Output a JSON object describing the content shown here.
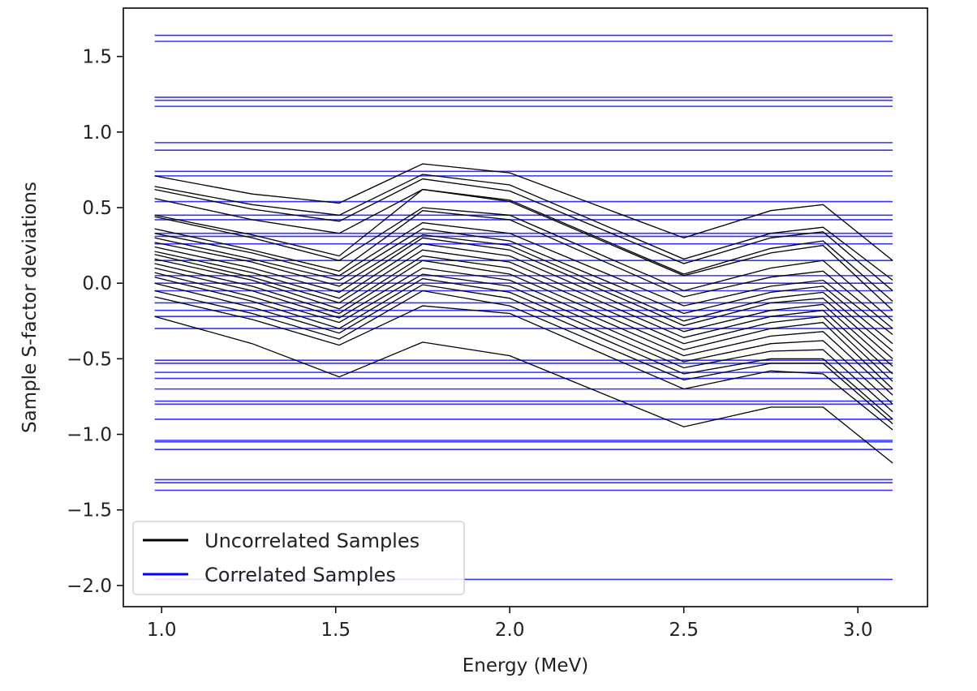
{
  "chart_data": {
    "type": "line",
    "title": "",
    "xlabel": "Energy (MeV)",
    "ylabel": "Sample S-factor deviations",
    "xlim": [
      0.89,
      3.2
    ],
    "ylim": [
      -2.14,
      1.82
    ],
    "xticks": [
      1.0,
      1.5,
      2.0,
      2.5,
      3.0
    ],
    "xtick_labels": [
      "1.0",
      "1.5",
      "2.0",
      "2.5",
      "3.0"
    ],
    "yticks": [
      1.5,
      1.0,
      0.5,
      0.0,
      -0.5,
      -1.0,
      -1.5,
      -2.0
    ],
    "ytick_labels": [
      "1.5",
      "1.0",
      "0.5",
      "0.0",
      "−0.5",
      "−1.0",
      "−1.5",
      "−2.0"
    ],
    "grid": false,
    "legend_position": "lower-left",
    "legend": [
      {
        "label": "Uncorrelated Samples",
        "color": "#000000"
      },
      {
        "label": "Correlated Samples",
        "color": "#0000ff"
      }
    ],
    "energies": [
      0.98,
      1.26,
      1.51,
      1.75,
      2.0,
      2.5,
      2.75,
      2.9,
      3.1
    ],
    "series": [
      {
        "group": "uncorrelated",
        "values": [
          0.71,
          0.59,
          0.53,
          0.79,
          0.73,
          0.3,
          0.48,
          0.52,
          0.15
        ]
      },
      {
        "group": "uncorrelated",
        "values": [
          0.64,
          0.52,
          0.45,
          0.72,
          0.65,
          0.16,
          0.33,
          0.37,
          0.02
        ]
      },
      {
        "group": "uncorrelated",
        "values": [
          0.62,
          0.49,
          0.41,
          0.69,
          0.61,
          0.13,
          0.3,
          0.34,
          -0.05
        ]
      },
      {
        "group": "uncorrelated",
        "values": [
          0.56,
          0.42,
          0.33,
          0.62,
          0.55,
          0.06,
          0.23,
          0.28,
          -0.12
        ]
      },
      {
        "group": "uncorrelated",
        "values": [
          0.45,
          0.32,
          0.18,
          0.62,
          0.54,
          0.05,
          0.2,
          0.25,
          -0.18
        ]
      },
      {
        "group": "uncorrelated",
        "values": [
          0.44,
          0.3,
          0.15,
          0.5,
          0.45,
          -0.05,
          0.1,
          0.15,
          -0.25
        ]
      },
      {
        "group": "uncorrelated",
        "values": [
          0.36,
          0.22,
          0.08,
          0.48,
          0.42,
          -0.09,
          0.04,
          0.08,
          -0.3
        ]
      },
      {
        "group": "uncorrelated",
        "values": [
          0.33,
          0.2,
          0.05,
          0.4,
          0.33,
          -0.15,
          -0.02,
          0.02,
          -0.34
        ]
      },
      {
        "group": "uncorrelated",
        "values": [
          0.3,
          0.16,
          0.02,
          0.36,
          0.28,
          -0.2,
          -0.06,
          -0.02,
          -0.4
        ]
      },
      {
        "group": "uncorrelated",
        "values": [
          0.27,
          0.14,
          -0.02,
          0.32,
          0.25,
          -0.25,
          -0.1,
          -0.06,
          -0.45
        ]
      },
      {
        "group": "uncorrelated",
        "values": [
          0.24,
          0.1,
          -0.06,
          0.3,
          0.22,
          -0.28,
          -0.13,
          -0.1,
          -0.5
        ]
      },
      {
        "group": "uncorrelated",
        "values": [
          0.21,
          0.07,
          -0.1,
          0.26,
          0.18,
          -0.32,
          -0.18,
          -0.14,
          -0.55
        ]
      },
      {
        "group": "uncorrelated",
        "values": [
          0.19,
          0.04,
          -0.13,
          0.22,
          0.14,
          -0.36,
          -0.22,
          -0.18,
          -0.6
        ]
      },
      {
        "group": "uncorrelated",
        "values": [
          0.16,
          0.02,
          -0.17,
          0.18,
          0.1,
          -0.4,
          -0.26,
          -0.22,
          -0.65
        ]
      },
      {
        "group": "uncorrelated",
        "values": [
          0.13,
          -0.02,
          -0.2,
          0.15,
          0.06,
          -0.44,
          -0.3,
          -0.26,
          -0.7
        ]
      },
      {
        "group": "uncorrelated",
        "values": [
          0.1,
          -0.05,
          -0.23,
          0.1,
          0.02,
          -0.48,
          -0.35,
          -0.32,
          -0.74
        ]
      },
      {
        "group": "uncorrelated",
        "values": [
          0.07,
          -0.09,
          -0.26,
          0.06,
          -0.02,
          -0.52,
          -0.4,
          -0.38,
          -0.8
        ]
      },
      {
        "group": "uncorrelated",
        "values": [
          0.04,
          -0.12,
          -0.3,
          0.03,
          -0.06,
          -0.56,
          -0.45,
          -0.44,
          -0.85
        ]
      },
      {
        "group": "uncorrelated",
        "values": [
          0.0,
          -0.16,
          -0.33,
          -0.01,
          -0.1,
          -0.6,
          -0.5,
          -0.5,
          -0.9
        ]
      },
      {
        "group": "uncorrelated",
        "values": [
          -0.05,
          -0.2,
          -0.37,
          -0.05,
          -0.15,
          -0.64,
          -0.53,
          -0.53,
          -0.93
        ]
      },
      {
        "group": "uncorrelated",
        "values": [
          -0.09,
          -0.24,
          -0.41,
          -0.15,
          -0.2,
          -0.7,
          -0.58,
          -0.6,
          -0.97
        ]
      },
      {
        "group": "uncorrelated",
        "values": [
          -0.22,
          -0.4,
          -0.62,
          -0.39,
          -0.48,
          -0.95,
          -0.82,
          -0.82,
          -1.19
        ]
      }
    ],
    "correlated_values": [
      1.64,
      1.6,
      1.23,
      1.21,
      1.17,
      0.93,
      0.88,
      0.74,
      0.71,
      0.54,
      0.45,
      0.42,
      0.33,
      0.31,
      0.26,
      0.15,
      0.05,
      0.0,
      -0.05,
      -0.13,
      -0.18,
      -0.22,
      -0.3,
      -0.51,
      -0.53,
      -0.59,
      -0.63,
      -0.7,
      -0.78,
      -0.8,
      -0.9,
      -1.04,
      -1.05,
      -1.1,
      -1.3,
      -1.32,
      -1.37,
      -1.96
    ]
  }
}
